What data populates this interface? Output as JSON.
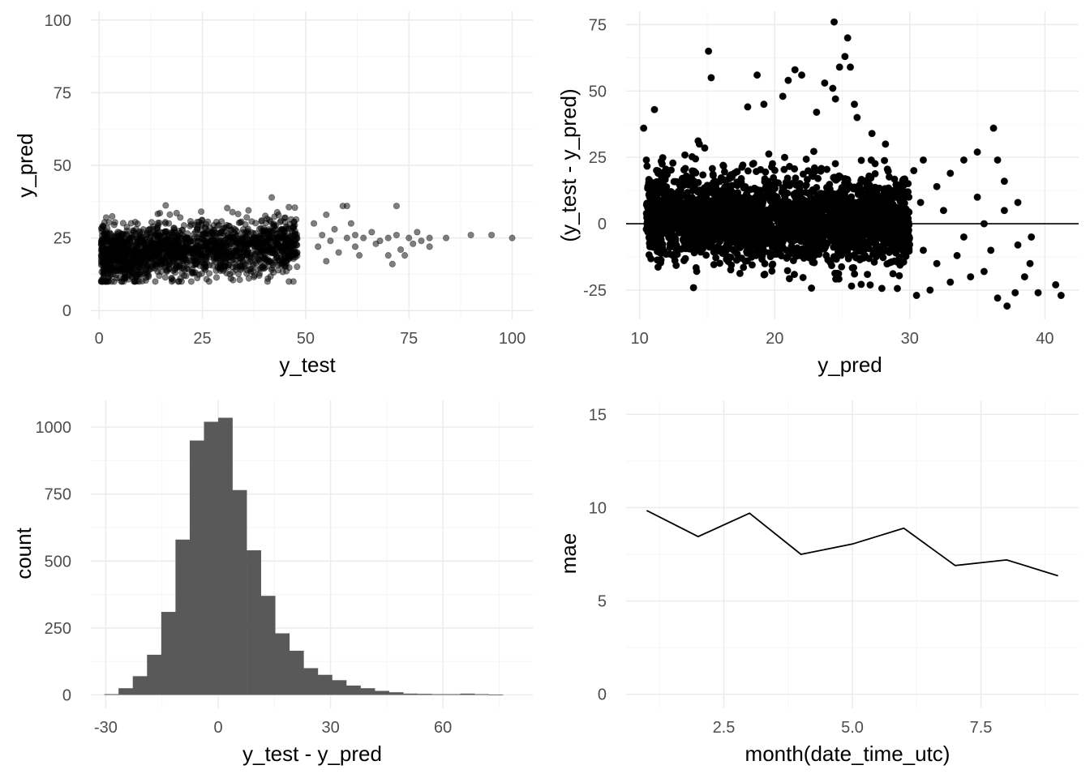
{
  "chart_data": [
    {
      "type": "scatter",
      "xlabel": "y_test",
      "ylabel": "y_pred",
      "xlim": [
        -2,
        105
      ],
      "ylim": [
        -3,
        103
      ],
      "x_ticks": [
        0,
        25,
        50,
        75,
        100
      ],
      "x_tick_labels": [
        "0",
        "25",
        "50",
        "75",
        "100"
      ],
      "y_ticks": [
        0,
        25,
        50,
        75,
        100
      ],
      "y_tick_labels": [
        "0",
        "25",
        "50",
        "75",
        "100"
      ],
      "grid": true,
      "point_color": "#000000",
      "point_alpha": 0.5,
      "cloud": {
        "x_range": [
          0.5,
          48
        ],
        "y_center": 21,
        "y_spread": 6,
        "approx_points": 1800
      },
      "points": [
        {
          "x": 52,
          "y": 30
        },
        {
          "x": 53,
          "y": 22
        },
        {
          "x": 54,
          "y": 26
        },
        {
          "x": 55,
          "y": 17
        },
        {
          "x": 55,
          "y": 33
        },
        {
          "x": 56,
          "y": 24
        },
        {
          "x": 57,
          "y": 28
        },
        {
          "x": 58,
          "y": 20
        },
        {
          "x": 59,
          "y": 36
        },
        {
          "x": 60,
          "y": 36
        },
        {
          "x": 60,
          "y": 25
        },
        {
          "x": 61,
          "y": 30
        },
        {
          "x": 62,
          "y": 22
        },
        {
          "x": 62,
          "y": 26
        },
        {
          "x": 63,
          "y": 19
        },
        {
          "x": 64,
          "y": 25
        },
        {
          "x": 66,
          "y": 27
        },
        {
          "x": 67,
          "y": 23
        },
        {
          "x": 68,
          "y": 24
        },
        {
          "x": 70,
          "y": 25
        },
        {
          "x": 70,
          "y": 19
        },
        {
          "x": 71,
          "y": 16
        },
        {
          "x": 72,
          "y": 36
        },
        {
          "x": 72,
          "y": 26
        },
        {
          "x": 73,
          "y": 21
        },
        {
          "x": 74,
          "y": 19
        },
        {
          "x": 75,
          "y": 25
        },
        {
          "x": 76,
          "y": 23
        },
        {
          "x": 77,
          "y": 27
        },
        {
          "x": 78,
          "y": 24
        },
        {
          "x": 80,
          "y": 25
        },
        {
          "x": 80,
          "y": 22
        },
        {
          "x": 84,
          "y": 25
        },
        {
          "x": 90,
          "y": 26
        },
        {
          "x": 95,
          "y": 26
        },
        {
          "x": 100,
          "y": 25
        }
      ]
    },
    {
      "type": "scatter",
      "xlabel": "y_pred",
      "ylabel": "(y_test - y_pred)",
      "xlim": [
        9,
        42.5
      ],
      "ylim": [
        -36,
        80
      ],
      "x_ticks": [
        10,
        20,
        30,
        40
      ],
      "x_tick_labels": [
        "10",
        "20",
        "30",
        "40"
      ],
      "y_ticks": [
        -25,
        0,
        25,
        50,
        75
      ],
      "y_tick_labels": [
        "-25",
        "0",
        "25",
        "50",
        "75"
      ],
      "grid": true,
      "hline": 0,
      "point_color": "#000000",
      "cloud": {
        "x_range": [
          10.5,
          30
        ],
        "y_center": 0,
        "y_spread": 9,
        "approx_points": 2600
      },
      "points": [
        {
          "x": 10.3,
          "y": 36
        },
        {
          "x": 10.5,
          "y": 24
        },
        {
          "x": 11.1,
          "y": 43
        },
        {
          "x": 15.1,
          "y": 65
        },
        {
          "x": 15.3,
          "y": 55
        },
        {
          "x": 18.0,
          "y": 44
        },
        {
          "x": 18.7,
          "y": 56
        },
        {
          "x": 19.2,
          "y": 45
        },
        {
          "x": 20.6,
          "y": 48
        },
        {
          "x": 21.0,
          "y": 54
        },
        {
          "x": 21.5,
          "y": 58
        },
        {
          "x": 22.0,
          "y": 56
        },
        {
          "x": 23.1,
          "y": 42
        },
        {
          "x": 23.7,
          "y": 53
        },
        {
          "x": 24.3,
          "y": 51
        },
        {
          "x": 24.4,
          "y": 76
        },
        {
          "x": 24.8,
          "y": 59
        },
        {
          "x": 25.2,
          "y": 63
        },
        {
          "x": 25.4,
          "y": 70
        },
        {
          "x": 25.6,
          "y": 59
        },
        {
          "x": 25.9,
          "y": 45
        },
        {
          "x": 24.5,
          "y": 47
        },
        {
          "x": 27.2,
          "y": 34
        },
        {
          "x": 26.1,
          "y": 40
        },
        {
          "x": 28.2,
          "y": 30
        },
        {
          "x": 30.3,
          "y": 20
        },
        {
          "x": 31.0,
          "y": 24
        },
        {
          "x": 32.0,
          "y": 14
        },
        {
          "x": 33.0,
          "y": 19
        },
        {
          "x": 34.0,
          "y": 24
        },
        {
          "x": 35.0,
          "y": 27
        },
        {
          "x": 36.2,
          "y": 36
        },
        {
          "x": 36.5,
          "y": 24
        },
        {
          "x": 37.0,
          "y": 16
        },
        {
          "x": 38.0,
          "y": 8
        },
        {
          "x": 39.0,
          "y": -5
        },
        {
          "x": 30.5,
          "y": -27
        },
        {
          "x": 31.5,
          "y": -25
        },
        {
          "x": 33.0,
          "y": -22
        },
        {
          "x": 34.5,
          "y": -20
        },
        {
          "x": 35.5,
          "y": -18
        },
        {
          "x": 36.5,
          "y": -28
        },
        {
          "x": 37.2,
          "y": -31
        },
        {
          "x": 37.8,
          "y": -26
        },
        {
          "x": 38.5,
          "y": -20
        },
        {
          "x": 38.9,
          "y": -15
        },
        {
          "x": 39.5,
          "y": -26
        },
        {
          "x": 40.8,
          "y": -23
        },
        {
          "x": 41.2,
          "y": -27
        },
        {
          "x": 32.5,
          "y": 5
        },
        {
          "x": 34.0,
          "y": -5
        },
        {
          "x": 35.5,
          "y": 0
        },
        {
          "x": 36.0,
          "y": -10
        },
        {
          "x": 37.0,
          "y": 5
        },
        {
          "x": 38.0,
          "y": -8
        },
        {
          "x": 33.5,
          "y": -12
        },
        {
          "x": 35.0,
          "y": 10
        },
        {
          "x": 31.0,
          "y": -10
        },
        {
          "x": 32.0,
          "y": -15
        },
        {
          "x": 30.8,
          "y": 8
        }
      ]
    },
    {
      "type": "bar",
      "subtype": "histogram",
      "xlabel": "y_test - y_pred",
      "ylabel": "count",
      "xlim": [
        -34,
        84
      ],
      "ylim": [
        -50,
        1100
      ],
      "x_ticks": [
        -30,
        0,
        30,
        60
      ],
      "x_tick_labels": [
        "-30",
        "0",
        "30",
        "60"
      ],
      "y_ticks": [
        0,
        250,
        500,
        750,
        1000
      ],
      "y_tick_labels": [
        "0",
        "250",
        "500",
        "750",
        "1000"
      ],
      "grid": true,
      "bar_color": "#595959",
      "bin_width": 3.8,
      "bin_start": -30.4,
      "values": [
        3,
        25,
        70,
        150,
        310,
        580,
        950,
        1020,
        1035,
        765,
        540,
        370,
        230,
        165,
        100,
        75,
        55,
        35,
        25,
        15,
        10,
        5,
        4,
        3,
        3,
        5,
        3,
        1,
        0
      ]
    },
    {
      "type": "line",
      "xlabel": "month(date_time_utc)",
      "ylabel": "mae",
      "xlim": [
        0.6,
        9.4
      ],
      "ylim": [
        -0.75,
        15.75
      ],
      "x_ticks": [
        2.5,
        5.0,
        7.5
      ],
      "x_tick_labels": [
        "2.5",
        "5.0",
        "7.5"
      ],
      "y_ticks": [
        0,
        5,
        10,
        15
      ],
      "y_tick_labels": [
        "0",
        "5",
        "10",
        "15"
      ],
      "grid": true,
      "line_color": "#000000",
      "x": [
        1,
        2,
        3,
        4,
        5,
        6,
        7,
        8,
        9
      ],
      "values": [
        9.85,
        8.45,
        9.7,
        7.5,
        8.05,
        8.9,
        6.9,
        7.2,
        6.35
      ]
    }
  ]
}
